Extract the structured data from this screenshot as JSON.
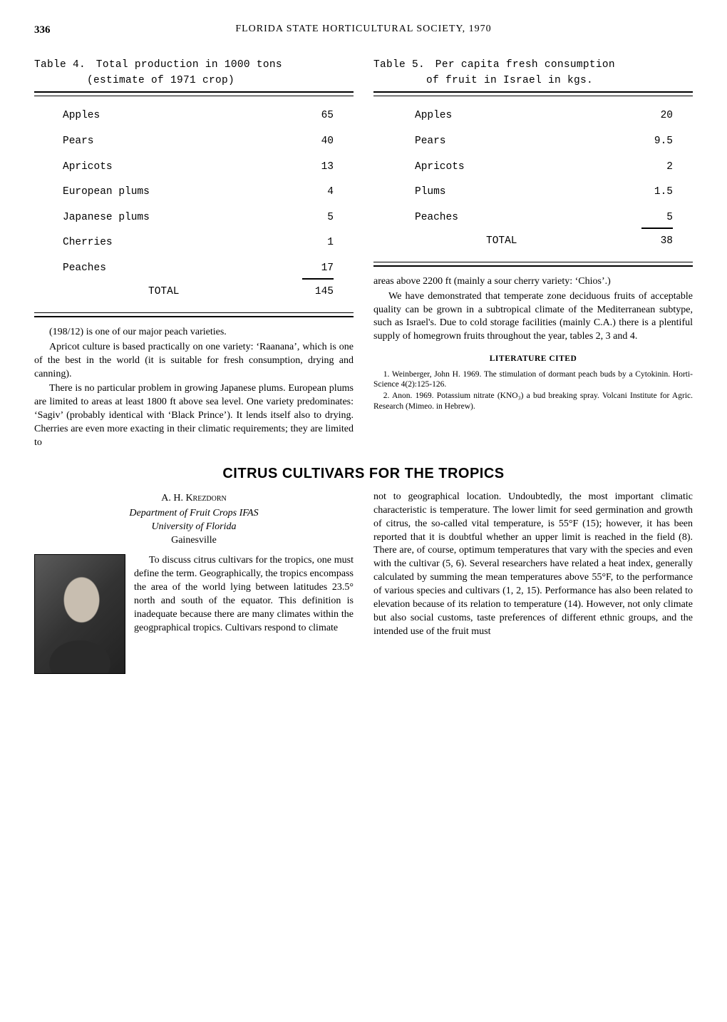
{
  "page_number": "336",
  "running_head": "FLORIDA STATE HORTICULTURAL SOCIETY, 1970",
  "table4": {
    "caption_line1": "Table 4. Total production in 1000 tons",
    "caption_line2": "(estimate of 1971 crop)",
    "rows": [
      {
        "label": "Apples",
        "value": "65"
      },
      {
        "label": "Pears",
        "value": "40"
      },
      {
        "label": "Apricots",
        "value": "13"
      },
      {
        "label": "European plums",
        "value": "4"
      },
      {
        "label": "Japanese plums",
        "value": "5"
      },
      {
        "label": "Cherries",
        "value": "1"
      },
      {
        "label": "Peaches",
        "value": "17"
      }
    ],
    "total_label": "TOTAL",
    "total_value": "145"
  },
  "table5": {
    "caption_line1": "Table 5. Per capita fresh consumption",
    "caption_line2": "of fruit in Israel in kgs.",
    "rows": [
      {
        "label": "Apples",
        "value": "20"
      },
      {
        "label": "Pears",
        "value": "9.5"
      },
      {
        "label": "Apricots",
        "value": "2"
      },
      {
        "label": "Plums",
        "value": "1.5"
      },
      {
        "label": "Peaches",
        "value": "5"
      }
    ],
    "total_label": "TOTAL",
    "total_value": "38"
  },
  "left_paragraphs": [
    "(198/12) is one of our major peach varieties.",
    "Apricot culture is based practically on one variety: ‘Raanana’, which is one of the best in the world (it is suitable for fresh consumption, drying and canning).",
    "There is no particular problem in growing Japanese plums. European plums are limited to areas at least 1800 ft above sea level. One variety predominates: ‘Sagiv’ (probably identical with ‘Black Prince’). It lends itself also to drying. Cherries are even more exacting in their climatic requirements; they are limited to"
  ],
  "right_paragraphs": [
    "areas above 2200 ft (mainly a sour cherry variety: ‘Chios’.)",
    "We have demonstrated that temperate zone deciduous fruits of acceptable quality can be grown in a subtropical climate of the Mediterranean subtype, such as Israel's. Due to cold storage facilities (mainly C.A.) there is a plentiful supply of homegrown fruits throughout the year, tables 2, 3 and 4."
  ],
  "lit_head": "LITERATURE CITED",
  "refs": [
    "1. Weinberger, John H. 1969. The stimulation of dormant peach buds by a Cytokinin. Horti-Science 4(2):125-126.",
    "2. Anon. 1969. Potassium nitrate (KNO₃) a bud breaking spray. Volcani Institute for Agric. Research (Mimeo. in Hebrew)."
  ],
  "article": {
    "title": "CITRUS CULTIVARS FOR THE TROPICS",
    "author": "A. H. Krezdorn",
    "affil1": "Department of Fruit Crops IFAS",
    "affil2": "University of Florida",
    "affil3": "Gainesville",
    "photo_para": "To discuss citrus cultivars for the tropics, one must define the term. Geographically, the tropics encompass the area of the world lying between latitudes 23.5° north and south of the equator. This definition is inadequate because there are many climates within the geogpraphical tropics. Cultivars respond to climate",
    "right_para": "not to geographical location. Undoubtedly, the most important climatic characteristic is temperature. The lower limit for seed germination and growth of citrus, the so-called vital temperature, is 55°F (15); however, it has been reported that it is doubtful whether an upper limit is reached in the field (8). There are, of course, optimum temperatures that vary with the species and even with the cultivar (5, 6). Several researchers have related a heat index, generally calculated by summing the mean temperatures above 55°F, to the performance of various species and cultivars (1, 2, 15). Performance has also been related to elevation because of its relation to temperature (14). However, not only climate but also social customs, taste preferences of different ethnic groups, and the intended use of the fruit must"
  }
}
